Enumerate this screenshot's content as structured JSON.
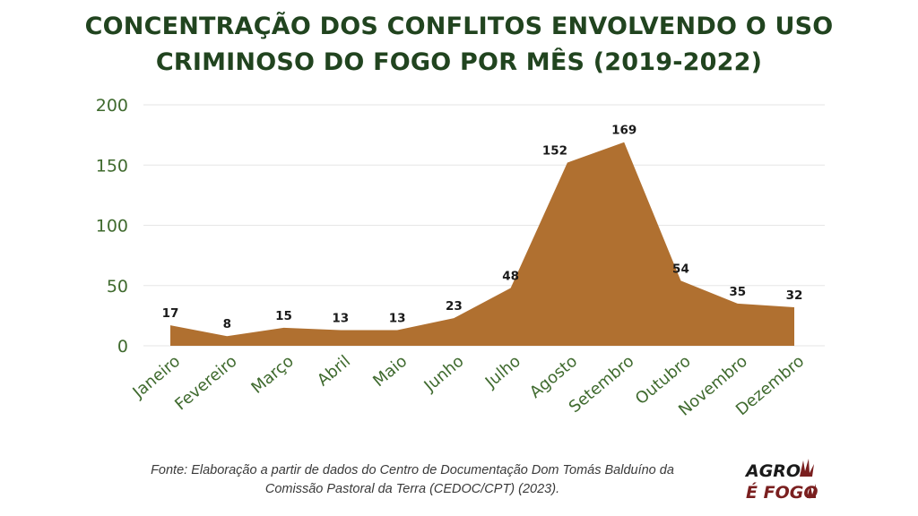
{
  "title_lines": [
    "CONCENTRAÇÃO DOS CONFLITOS ENVOLVENDO O USO",
    "CRIMINOSO DO FOGO POR MÊS (2019-2022)"
  ],
  "source_lines": [
    "Fonte: Elaboração a partir de dados do Centro de Documentação Dom Tomás Balduíno da",
    "Comissão Pastoral da Terra (CEDOC/CPT) (2023)."
  ],
  "logo": {
    "top_text": "AGRO",
    "bottom_text": "É FOGO"
  },
  "colors": {
    "area": "#b07030",
    "title": "#21441f",
    "axis_text": "#3f6a2e",
    "label": "#1a1a1a",
    "grid": "#e6e6e6",
    "logo": "#7a1f1f"
  },
  "chart_data": {
    "type": "area",
    "title": "CONCENTRAÇÃO DOS CONFLITOS ENVOLVENDO O USO CRIMINOSO DO FOGO POR MÊS (2019-2022)",
    "categories": [
      "Janeiro",
      "Fevereiro",
      "Março",
      "Abril",
      "Maio",
      "Junho",
      "Julho",
      "Agosto",
      "Setembro",
      "Outubro",
      "Novembro",
      "Dezembro"
    ],
    "values": [
      17,
      8,
      15,
      13,
      13,
      23,
      48,
      152,
      169,
      54,
      35,
      32
    ],
    "ylim": [
      0,
      200
    ],
    "yticks": [
      0,
      50,
      100,
      150,
      200
    ],
    "grid": true,
    "data_labels": true
  }
}
